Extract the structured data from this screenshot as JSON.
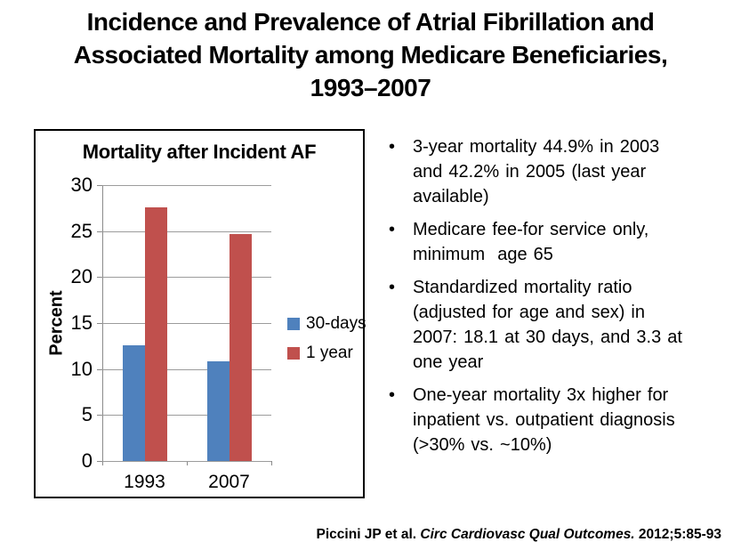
{
  "title": {
    "lines": [
      "Incidence and Prevalence of Atrial Fibrillation and",
      "Associated Mortality among Medicare Beneficiaries,",
      "1993–2007"
    ]
  },
  "chart_data": {
    "type": "bar",
    "title": "Mortality after Incident AF",
    "xlabel": "",
    "ylabel": "Percent",
    "categories": [
      "1993",
      "2007"
    ],
    "series": [
      {
        "name": "30-days",
        "color": "#4f81bd",
        "values": [
          12.6,
          10.8
        ]
      },
      {
        "name": "1 year",
        "color": "#c0504d",
        "values": [
          27.6,
          24.7
        ]
      }
    ],
    "ylim": [
      0,
      30
    ],
    "yticks": [
      0,
      5,
      10,
      15,
      20,
      25,
      30
    ],
    "grid": true,
    "legend_position": "right",
    "gridline_color": "#9c9c9c",
    "axis_color": "#8a8a8a"
  },
  "bullet_char": "•",
  "bullets": [
    {
      "lines": [
        "3-year mortality 44.9% in 2003",
        "and 42.2% in 2005 (last year",
        "available)"
      ]
    },
    {
      "lines": [
        "Medicare fee-for service only,",
        "minimum  age 65"
      ]
    },
    {
      "lines": [
        "Standardized mortality ratio",
        "(adjusted for age and sex) in",
        "2007: 18.1 at 30 days, and 3.3 at",
        "one year"
      ]
    },
    {
      "lines": [
        "One-year mortality 3x higher for",
        "inpatient vs. outpatient diagnosis",
        "(>30% vs. ~10%)"
      ]
    }
  ],
  "footer": {
    "prefix": "Piccini JP et al. ",
    "journal": "Circ Cardiovasc Qual Outcomes.",
    "suffix": " 2012;5:85-93"
  }
}
